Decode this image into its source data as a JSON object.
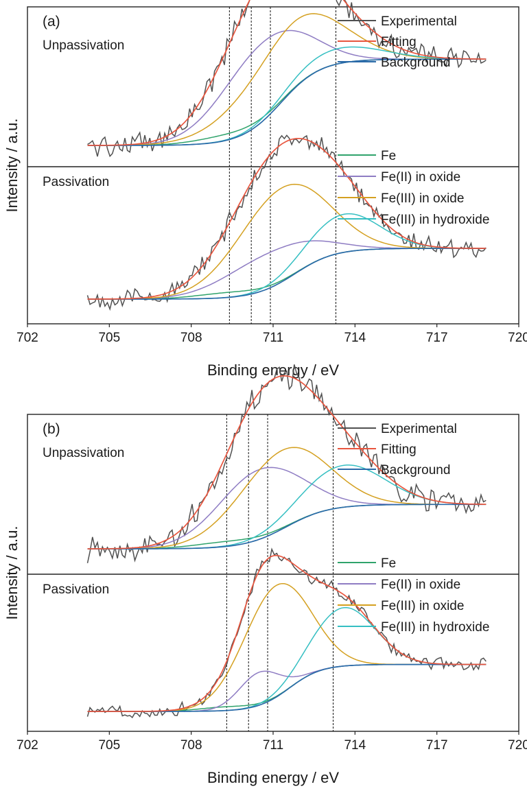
{
  "figure": {
    "x_ticks": [
      702,
      705,
      708,
      711,
      714,
      717,
      720
    ],
    "vlines_a": [
      709.4,
      710.2,
      710.9,
      713.3
    ],
    "vlines_b": [
      709.3,
      710.1,
      710.8,
      713.2
    ]
  },
  "colors": {
    "Experimental": "#505050",
    "Fitting": "#e8553e",
    "Background": "#2a6aa8",
    "Fe": "#2fa36b",
    "Fe(II) in oxide": "#8e7cc3",
    "Fe(III) in oxide": "#d4a020",
    "Fe(III) in hydroxide": "#35bfc2"
  },
  "chart_data": [
    {
      "type": "line",
      "panel_label": "(a)",
      "xlabel": "Binding energy / eV",
      "ylabel": "Intensity / a.u.",
      "xlim": [
        702,
        720
      ],
      "legend_top": [
        "Experimental",
        "Fitting",
        "Background"
      ],
      "legend_bottom": [
        "Fe",
        "Fe(II) in oxide",
        "Fe(III) in oxide",
        "Fe(III) in hydroxide"
      ],
      "subplots": [
        {
          "label": "Unpassivation",
          "x_range": [
            704.2,
            718.8
          ],
          "baseline": 0.05,
          "background_step": 0.68,
          "background_center": 711.3,
          "background_width": 1.6,
          "peaks": [
            {
              "name": "Fe",
              "center": 709.4,
              "height": 0.05,
              "width": 1.2
            },
            {
              "name": "Fe(II) in oxide",
              "center": 710.6,
              "height": 0.62,
              "width": 1.5
            },
            {
              "name": "Fe(III) in oxide",
              "center": 711.6,
              "height": 0.53,
              "width": 1.8
            },
            {
              "name": "Fe(III) in hydroxide",
              "center": 713.4,
              "height": 0.12,
              "width": 1.6
            }
          ],
          "noise_amp": 0.07
        },
        {
          "label": "Passivation",
          "x_range": [
            704.2,
            718.8
          ],
          "baseline": 0.05,
          "background_step": 0.4,
          "background_center": 711.8,
          "background_width": 1.6,
          "peaks": [
            {
              "name": "Fe",
              "center": 709.4,
              "height": 0.04,
              "width": 1.2
            },
            {
              "name": "Fe(II) in oxide",
              "center": 710.9,
              "height": 0.28,
              "width": 1.6
            },
            {
              "name": "Fe(III) in oxide",
              "center": 711.3,
              "height": 0.74,
              "width": 1.6
            },
            {
              "name": "Fe(III) in hydroxide",
              "center": 713.6,
              "height": 0.3,
              "width": 1.3
            }
          ],
          "noise_amp": 0.06
        }
      ]
    },
    {
      "type": "line",
      "panel_label": "(b)",
      "xlabel": "Binding energy / eV",
      "ylabel": "Intensity / a.u.",
      "xlim": [
        702,
        720
      ],
      "legend_top": [
        "Experimental",
        "Fitting",
        "Background"
      ],
      "legend_bottom": [
        "Fe",
        "Fe(II) in oxide",
        "Fe(III) in oxide",
        "Fe(III) in hydroxide"
      ],
      "subplots": [
        {
          "label": "Unpassivation",
          "x_range": [
            704.2,
            718.8
          ],
          "baseline": 0.05,
          "background_step": 0.35,
          "background_center": 711.5,
          "background_width": 1.7,
          "peaks": [
            {
              "name": "Fe",
              "center": 709.3,
              "height": 0.04,
              "width": 1.2
            },
            {
              "name": "Fe(II) in oxide",
              "center": 710.5,
              "height": 0.55,
              "width": 1.5
            },
            {
              "name": "Fe(III) in oxide",
              "center": 711.3,
              "height": 0.62,
              "width": 1.6
            },
            {
              "name": "Fe(III) in hydroxide",
              "center": 713.6,
              "height": 0.33,
              "width": 1.5
            }
          ],
          "noise_amp": 0.08
        },
        {
          "label": "Passivation",
          "x_range": [
            704.2,
            718.8
          ],
          "baseline": 0.05,
          "background_step": 0.37,
          "background_center": 711.6,
          "background_width": 1.3,
          "peaks": [
            {
              "name": "Fe",
              "center": 709.3,
              "height": 0.03,
              "width": 1.0
            },
            {
              "name": "Fe(II) in oxide",
              "center": 710.5,
              "height": 0.26,
              "width": 0.75
            },
            {
              "name": "Fe(III) in oxide",
              "center": 711.1,
              "height": 0.88,
              "width": 1.2
            },
            {
              "name": "Fe(III) in hydroxide",
              "center": 713.6,
              "height": 0.46,
              "width": 1.15
            }
          ],
          "noise_amp": 0.04
        }
      ]
    }
  ]
}
